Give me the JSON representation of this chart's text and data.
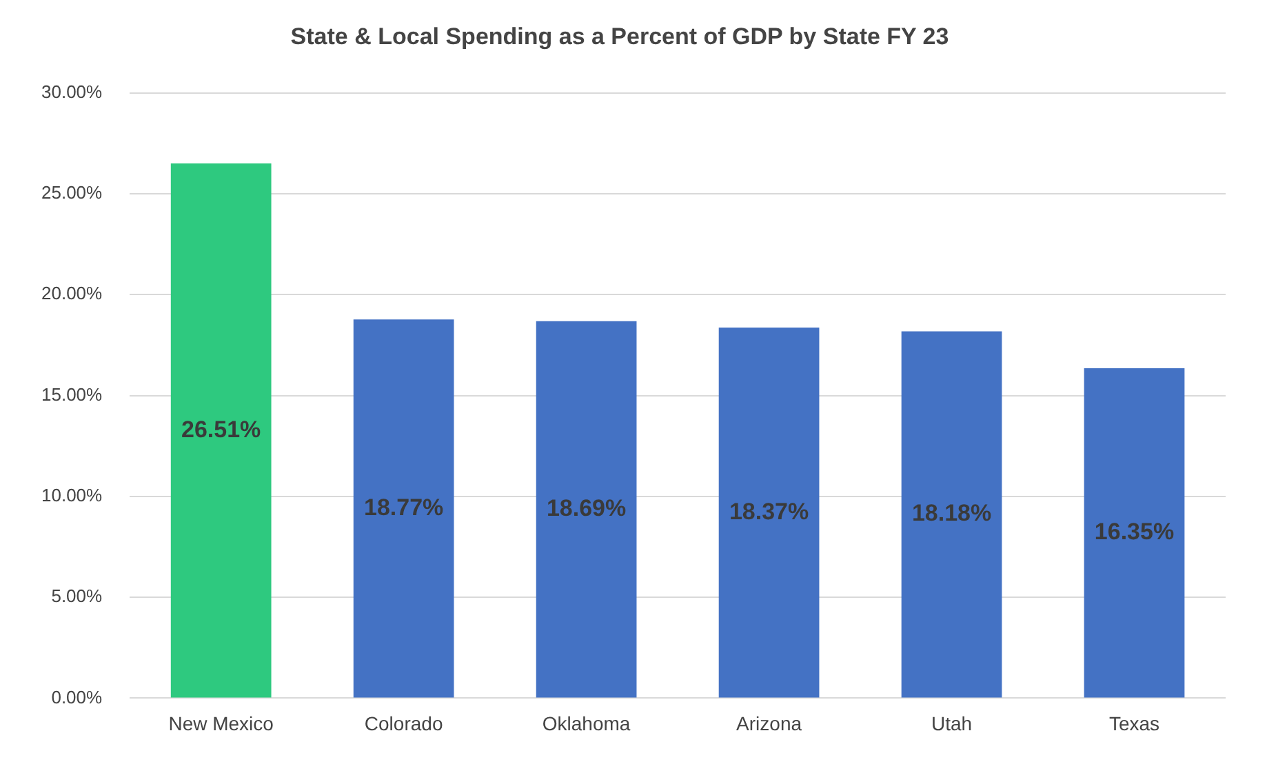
{
  "chart_data": {
    "type": "bar",
    "title": "State & Local Spending as a Percent of GDP by State FY 23",
    "categories": [
      "New Mexico",
      "Colorado",
      "Oklahoma",
      "Arizona",
      "Utah",
      "Texas"
    ],
    "values": [
      26.51,
      18.77,
      18.69,
      18.37,
      18.18,
      16.35
    ],
    "colors": [
      "#2ec97f",
      "#4472c4",
      "#4472c4",
      "#4472c4",
      "#4472c4",
      "#4472c4"
    ],
    "value_labels": [
      "26.51%",
      "18.77%",
      "18.69%",
      "18.37%",
      "18.18%",
      "16.35%"
    ],
    "ylim": [
      0,
      30
    ],
    "yticks": [
      {
        "value": 0,
        "label": "0.00%"
      },
      {
        "value": 5,
        "label": "5.00%"
      },
      {
        "value": 10,
        "label": "10.00%"
      },
      {
        "value": 15,
        "label": "15.00%"
      },
      {
        "value": 20,
        "label": "20.00%"
      },
      {
        "value": 25,
        "label": "25.00%"
      },
      {
        "value": 30,
        "label": "30.00%"
      }
    ],
    "grid": "y",
    "legend": false
  }
}
